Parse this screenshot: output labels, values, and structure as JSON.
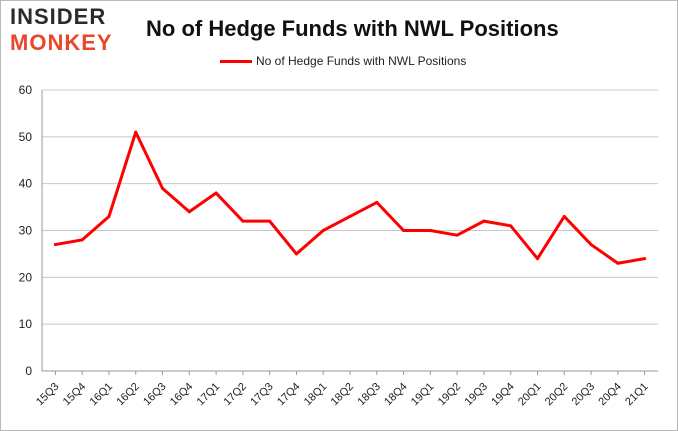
{
  "logo": {
    "line1": "INSIDER",
    "line2": "MONKEY"
  },
  "colors": {
    "series": "#ff0000",
    "grid": "#c8c8c8",
    "logo_accent": "#e8472a"
  },
  "chart_data": {
    "type": "line",
    "title": "No of Hedge Funds with NWL Positions",
    "xlabel": "",
    "ylabel": "",
    "ylim": [
      0,
      60
    ],
    "yticks": [
      0,
      10,
      20,
      30,
      40,
      50,
      60
    ],
    "grid": true,
    "legend_position": "top-center",
    "categories": [
      "15Q3",
      "15Q4",
      "16Q1",
      "16Q2",
      "16Q3",
      "16Q4",
      "17Q1",
      "17Q2",
      "17Q3",
      "17Q4",
      "18Q1",
      "18Q2",
      "18Q3",
      "18Q4",
      "19Q1",
      "19Q2",
      "19Q3",
      "19Q4",
      "20Q1",
      "20Q2",
      "20Q3",
      "20Q4",
      "21Q1"
    ],
    "series": [
      {
        "name": "No of Hedge Funds with NWL Positions",
        "values": [
          27,
          28,
          33,
          51,
          39,
          34,
          38,
          32,
          32,
          25,
          30,
          33,
          36,
          30,
          30,
          29,
          32,
          31,
          24,
          33,
          27,
          23,
          24
        ]
      }
    ]
  }
}
